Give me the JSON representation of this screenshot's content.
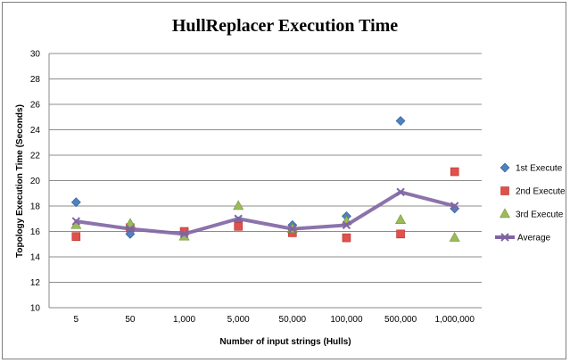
{
  "chart_data": {
    "type": "line",
    "title": "HullReplacer Execution Time",
    "xlabel": "Number of input strings (Hulls)",
    "ylabel": "Topology Execution Time (Seconds)",
    "categories": [
      "5",
      "50",
      "1,000",
      "5,000",
      "50,000",
      "100,000",
      "500,000",
      "1,000,000"
    ],
    "ylim": [
      10,
      30
    ],
    "yticks": [
      10,
      12,
      14,
      16,
      18,
      20,
      22,
      24,
      26,
      28,
      30
    ],
    "grid": true,
    "legend_position": "right",
    "series": [
      {
        "name": "1st Execute",
        "marker": "diamond",
        "line": false,
        "color": "#4f81bd",
        "values": [
          18.3,
          15.8,
          15.8,
          16.8,
          16.5,
          17.2,
          24.7,
          17.8
        ]
      },
      {
        "name": "2nd Execute",
        "marker": "square",
        "line": false,
        "color": "#e0504d",
        "values": [
          15.6,
          16.3,
          16.0,
          16.4,
          15.9,
          15.5,
          15.8,
          20.7
        ]
      },
      {
        "name": "3rd Execute",
        "marker": "triangle",
        "line": false,
        "color": "#9bbb59",
        "values": [
          16.5,
          16.6,
          15.6,
          18.0,
          16.2,
          16.8,
          16.9,
          15.5
        ]
      },
      {
        "name": "Average",
        "marker": "x",
        "line": true,
        "color": "#8064a2",
        "values": [
          16.8,
          16.2,
          15.8,
          17.0,
          16.2,
          16.5,
          19.1,
          18.0
        ]
      }
    ]
  }
}
